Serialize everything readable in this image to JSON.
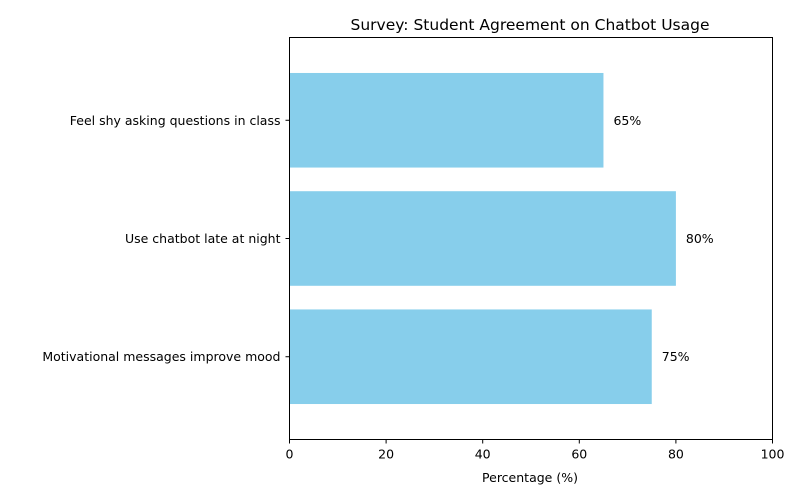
{
  "chart_data": {
    "type": "bar",
    "orientation": "horizontal",
    "title": "Survey: Student Agreement on Chatbot Usage",
    "xlabel": "Percentage (%)",
    "ylabel": "",
    "categories": [
      "Feel shy asking questions in class",
      "Use chatbot late at night",
      "Motivational messages improve mood"
    ],
    "values": [
      65,
      80,
      75
    ],
    "value_labels": [
      "65%",
      "80%",
      "75%"
    ],
    "xlim": [
      0,
      100
    ],
    "xticks": [
      0,
      20,
      40,
      60,
      80,
      100
    ],
    "grid": false,
    "legend": "none",
    "colors": {
      "bar": "#87ceeb"
    }
  }
}
